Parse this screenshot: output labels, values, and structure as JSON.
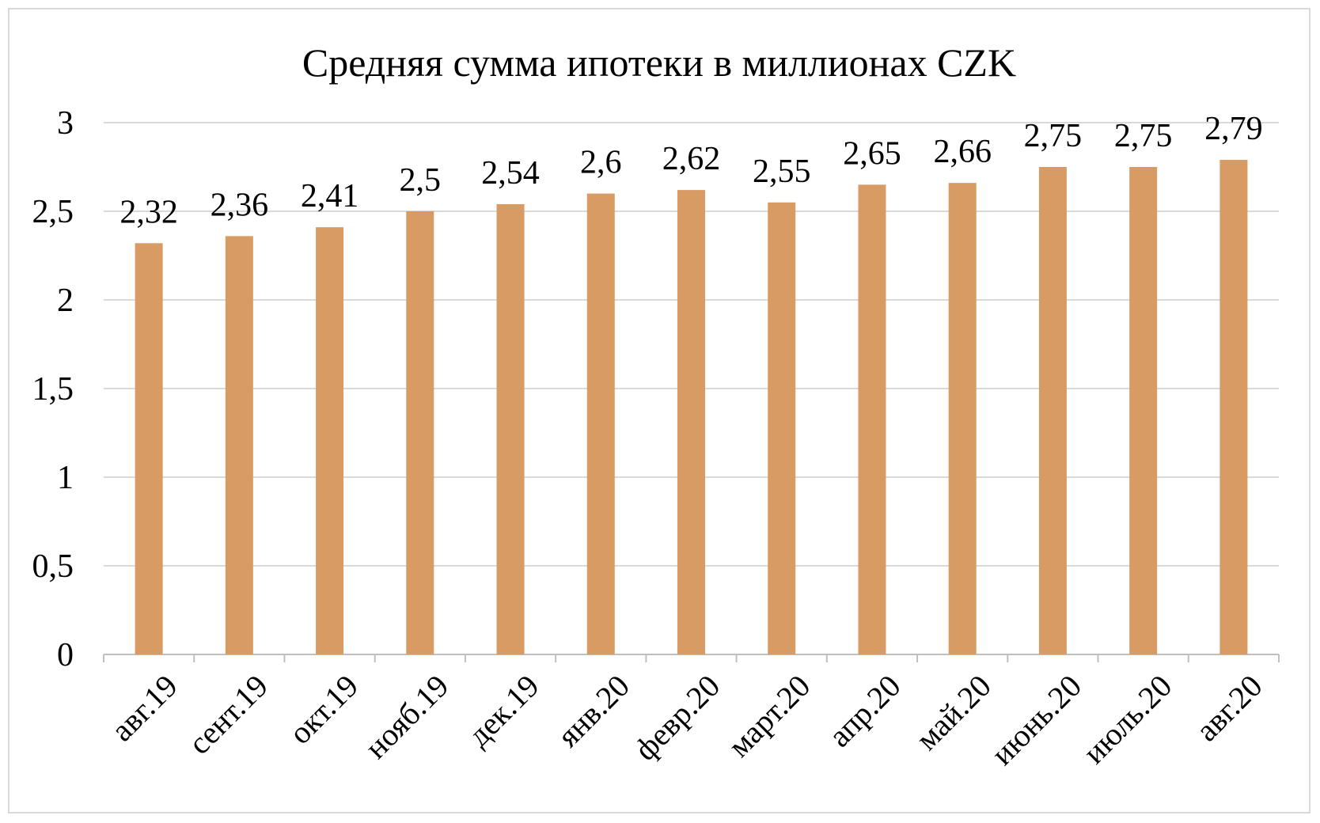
{
  "chart_data": {
    "type": "bar",
    "title": "Средняя сумма ипотеки в миллионах CZK",
    "xlabel": "",
    "ylabel": "",
    "categories": [
      "авг.19",
      "сент.19",
      "окт.19",
      "нояб.19",
      "дек.19",
      "янв.20",
      "февр.20",
      "март.20",
      "апр.20",
      "май.20",
      "июнь.20",
      "июль.20",
      "авг.20"
    ],
    "values": [
      2.32,
      2.36,
      2.41,
      2.5,
      2.54,
      2.6,
      2.62,
      2.55,
      2.65,
      2.66,
      2.75,
      2.75,
      2.79
    ],
    "data_labels": [
      "2,32",
      "2,36",
      "2,41",
      "2,5",
      "2,54",
      "2,6",
      "2,62",
      "2,55",
      "2,65",
      "2,66",
      "2,75",
      "2,75",
      "2,79"
    ],
    "yticks": [
      0,
      0.5,
      1,
      1.5,
      2,
      2.5,
      3
    ],
    "ytick_labels": [
      "0",
      "0,5",
      "1",
      "1,5",
      "2",
      "2,5",
      "3"
    ],
    "ylim": [
      0,
      3
    ],
    "grid": true,
    "legend": "none",
    "colors": {
      "bar": "#d99b64",
      "grid": "#d9d9d9",
      "axis": "#bfbfbf",
      "border": "#d9d9d9"
    }
  }
}
